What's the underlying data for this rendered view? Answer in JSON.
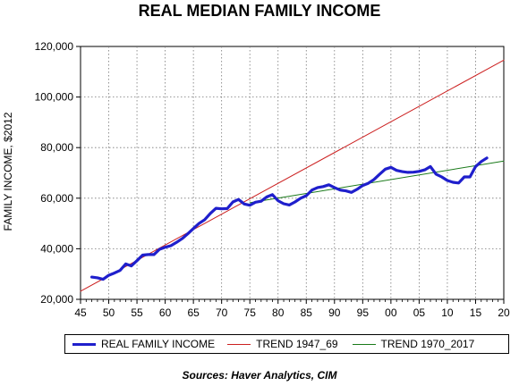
{
  "chart_data": {
    "type": "line",
    "title": "REAL MEDIAN FAMILY INCOME",
    "ylabel": "FAMILY INCOME, $2012",
    "xlabel": "",
    "source": "Sources:  Haver Analytics, CIM",
    "xlim": [
      1945,
      2020
    ],
    "ylim": [
      20000,
      120000
    ],
    "x_ticks": [
      1945,
      1950,
      1955,
      1960,
      1965,
      1970,
      1975,
      1980,
      1985,
      1990,
      1995,
      2000,
      2005,
      2010,
      2015,
      2020
    ],
    "x_tick_labels": [
      "45",
      "50",
      "55",
      "60",
      "65",
      "70",
      "75",
      "80",
      "85",
      "90",
      "95",
      "00",
      "05",
      "10",
      "15",
      "20"
    ],
    "y_ticks": [
      20000,
      40000,
      60000,
      80000,
      100000,
      120000
    ],
    "y_tick_labels": [
      "20,000",
      "40,000",
      "60,000",
      "80,000",
      "100,000",
      "120,000"
    ],
    "grid": true,
    "legend_position": "bottom",
    "series": [
      {
        "name": "REAL FAMILY INCOME",
        "color": "#1f1fcc",
        "x": [
          1947,
          1948,
          1949,
          1950,
          1951,
          1952,
          1953,
          1954,
          1955,
          1956,
          1957,
          1958,
          1959,
          1960,
          1961,
          1962,
          1963,
          1964,
          1965,
          1966,
          1967,
          1968,
          1969,
          1970,
          1971,
          1972,
          1973,
          1974,
          1975,
          1976,
          1977,
          1978,
          1979,
          1980,
          1981,
          1982,
          1983,
          1984,
          1985,
          1986,
          1987,
          1988,
          1989,
          1990,
          1991,
          1992,
          1993,
          1994,
          1995,
          1996,
          1997,
          1998,
          1999,
          2000,
          2001,
          2002,
          2003,
          2004,
          2005,
          2006,
          2007,
          2008,
          2009,
          2010,
          2011,
          2012,
          2013,
          2014,
          2015,
          2016,
          2017
        ],
        "y": [
          28800,
          28500,
          27900,
          29500,
          30400,
          31400,
          34000,
          33200,
          35300,
          37500,
          37700,
          37700,
          39800,
          40600,
          41200,
          42500,
          44000,
          45900,
          48000,
          50000,
          51500,
          54000,
          56000,
          55800,
          55900,
          58500,
          59500,
          57700,
          57200,
          58400,
          58800,
          60500,
          61400,
          59000,
          57800,
          57300,
          58500,
          60000,
          61000,
          63200,
          64200,
          64600,
          65300,
          64200,
          63200,
          62900,
          62300,
          63500,
          65000,
          65900,
          67400,
          69500,
          71500,
          72200,
          71000,
          70500,
          70200,
          70300,
          70600,
          71200,
          72500,
          69500,
          68400,
          67000,
          66300,
          66000,
          68400,
          68400,
          72500,
          74500,
          75900
        ]
      },
      {
        "name": "TREND 1947_69",
        "color": "#cc2020",
        "x": [
          1945,
          2020
        ],
        "y": [
          23200,
          114600
        ]
      },
      {
        "name": "TREND 1970_2017",
        "color": "#1a7a1a",
        "x": [
          1975,
          2020
        ],
        "y": [
          58200,
          74700
        ]
      }
    ]
  }
}
